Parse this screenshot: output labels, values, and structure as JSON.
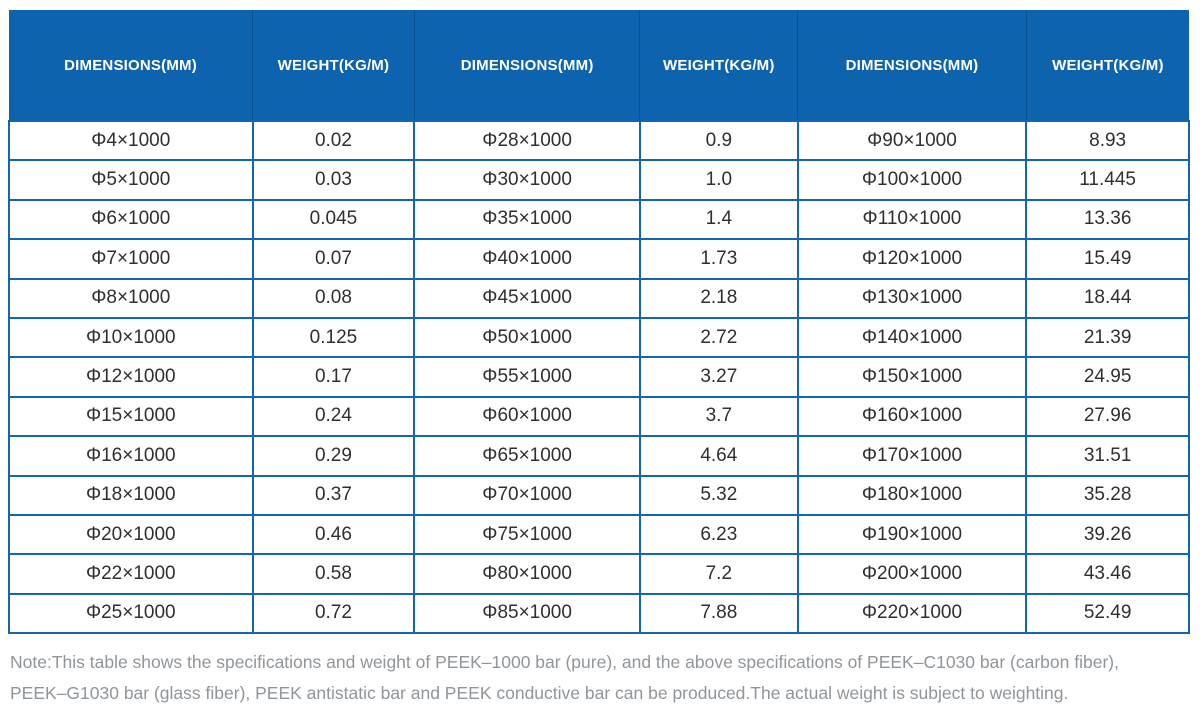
{
  "chart_data": {
    "type": "table",
    "columns": [
      "DIMENSIONS(MM)",
      "WEIGHT(KG/M)",
      "DIMENSIONS(MM)",
      "WEIGHT(KG/M)",
      "DIMENSIONS(MM)",
      "WEIGHT(KG/M)"
    ],
    "rows": [
      [
        "Φ4×1000",
        "0.02",
        "Φ28×1000",
        "0.9",
        "Φ90×1000",
        "8.93"
      ],
      [
        "Φ5×1000",
        "0.03",
        "Φ30×1000",
        "1.0",
        "Φ100×1000",
        "11.445"
      ],
      [
        "Φ6×1000",
        "0.045",
        "Φ35×1000",
        "1.4",
        "Φ110×1000",
        "13.36"
      ],
      [
        "Φ7×1000",
        "0.07",
        "Φ40×1000",
        "1.73",
        "Φ120×1000",
        "15.49"
      ],
      [
        "Φ8×1000",
        "0.08",
        "Φ45×1000",
        "2.18",
        "Φ130×1000",
        "18.44"
      ],
      [
        "Φ10×1000",
        "0.125",
        "Φ50×1000",
        "2.72",
        "Φ140×1000",
        "21.39"
      ],
      [
        "Φ12×1000",
        "0.17",
        "Φ55×1000",
        "3.27",
        "Φ150×1000",
        "24.95"
      ],
      [
        "Φ15×1000",
        "0.24",
        "Φ60×1000",
        "3.7",
        "Φ160×1000",
        "27.96"
      ],
      [
        "Φ16×1000",
        "0.29",
        "Φ65×1000",
        "4.64",
        "Φ170×1000",
        "31.51"
      ],
      [
        "Φ18×1000",
        "0.37",
        "Φ70×1000",
        "5.32",
        "Φ180×1000",
        "35.28"
      ],
      [
        "Φ20×1000",
        "0.46",
        "Φ75×1000",
        "6.23",
        "Φ190×1000",
        "39.26"
      ],
      [
        "Φ22×1000",
        "0.58",
        "Φ80×1000",
        "7.2",
        "Φ200×1000",
        "43.46"
      ],
      [
        "Φ25×1000",
        "0.72",
        "Φ85×1000",
        "7.88",
        "Φ220×1000",
        "52.49"
      ]
    ],
    "title": "",
    "layout_hints": {
      "header_rows": 1,
      "column_width_percents": [
        20.64,
        13.71,
        19.12,
        13.37,
        19.37,
        13.79
      ]
    }
  },
  "note": {
    "lines": [
      "Note:This table shows the specifications and weight of PEEK–1000 bar (pure), and the above specifications of PEEK–C1030 bar (carbon fiber),",
      "PEEK–G1030 bar (glass fiber), PEEK antistatic bar and PEEK conductive bar can be produced.The actual weight is subject to weighting."
    ]
  },
  "colors": {
    "header_bg": "#0d63ae",
    "header_text": "#ffffff",
    "border": "#1065b5",
    "cell_text": "#2f2f2f",
    "note_text": "#8f959a"
  }
}
